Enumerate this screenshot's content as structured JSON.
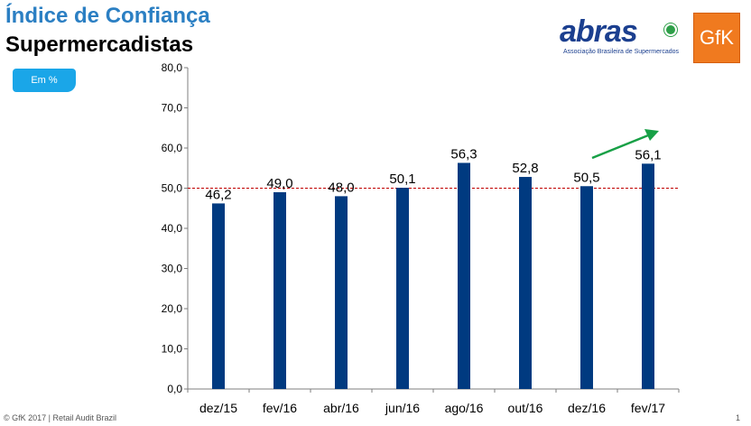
{
  "header": {
    "title_line1": "Índice de Confiança",
    "title_line2": "Supermercadistas",
    "badge": "Em %"
  },
  "logos": {
    "abras_word": "abras",
    "abras_subtitle": "Associação Brasileira de Supermercados",
    "gfk_word": "GfK"
  },
  "footer": {
    "copyright": "© GfK 2017 | Retail Audit Brazil",
    "page": "1"
  },
  "colors": {
    "bar": "#003a80",
    "reference_line": "#c00000",
    "arrow": "#17a046",
    "title_blue": "#2b7fc3",
    "badge": "#1aa6e8"
  },
  "chart_data": {
    "type": "bar",
    "categories": [
      "dez/15",
      "fev/16",
      "abr/16",
      "jun/16",
      "ago/16",
      "out/16",
      "dez/16",
      "fev/17"
    ],
    "values": [
      46.2,
      49.0,
      48.0,
      50.1,
      56.3,
      52.8,
      50.5,
      56.1
    ],
    "value_labels": [
      "46,2",
      "49,0",
      "48,0",
      "50,1",
      "56,3",
      "52,8",
      "50,5",
      "56,1"
    ],
    "ylim": [
      0,
      80
    ],
    "yticks": [
      0,
      10,
      20,
      30,
      40,
      50,
      60,
      70,
      80
    ],
    "ytick_labels": [
      "0,0",
      "10,0",
      "20,0",
      "30,0",
      "40,0",
      "50,0",
      "60,0",
      "70,0",
      "80,0"
    ],
    "reference_line": 50,
    "grid": false,
    "legend": "none",
    "title": "",
    "xlabel": "",
    "ylabel": ""
  }
}
